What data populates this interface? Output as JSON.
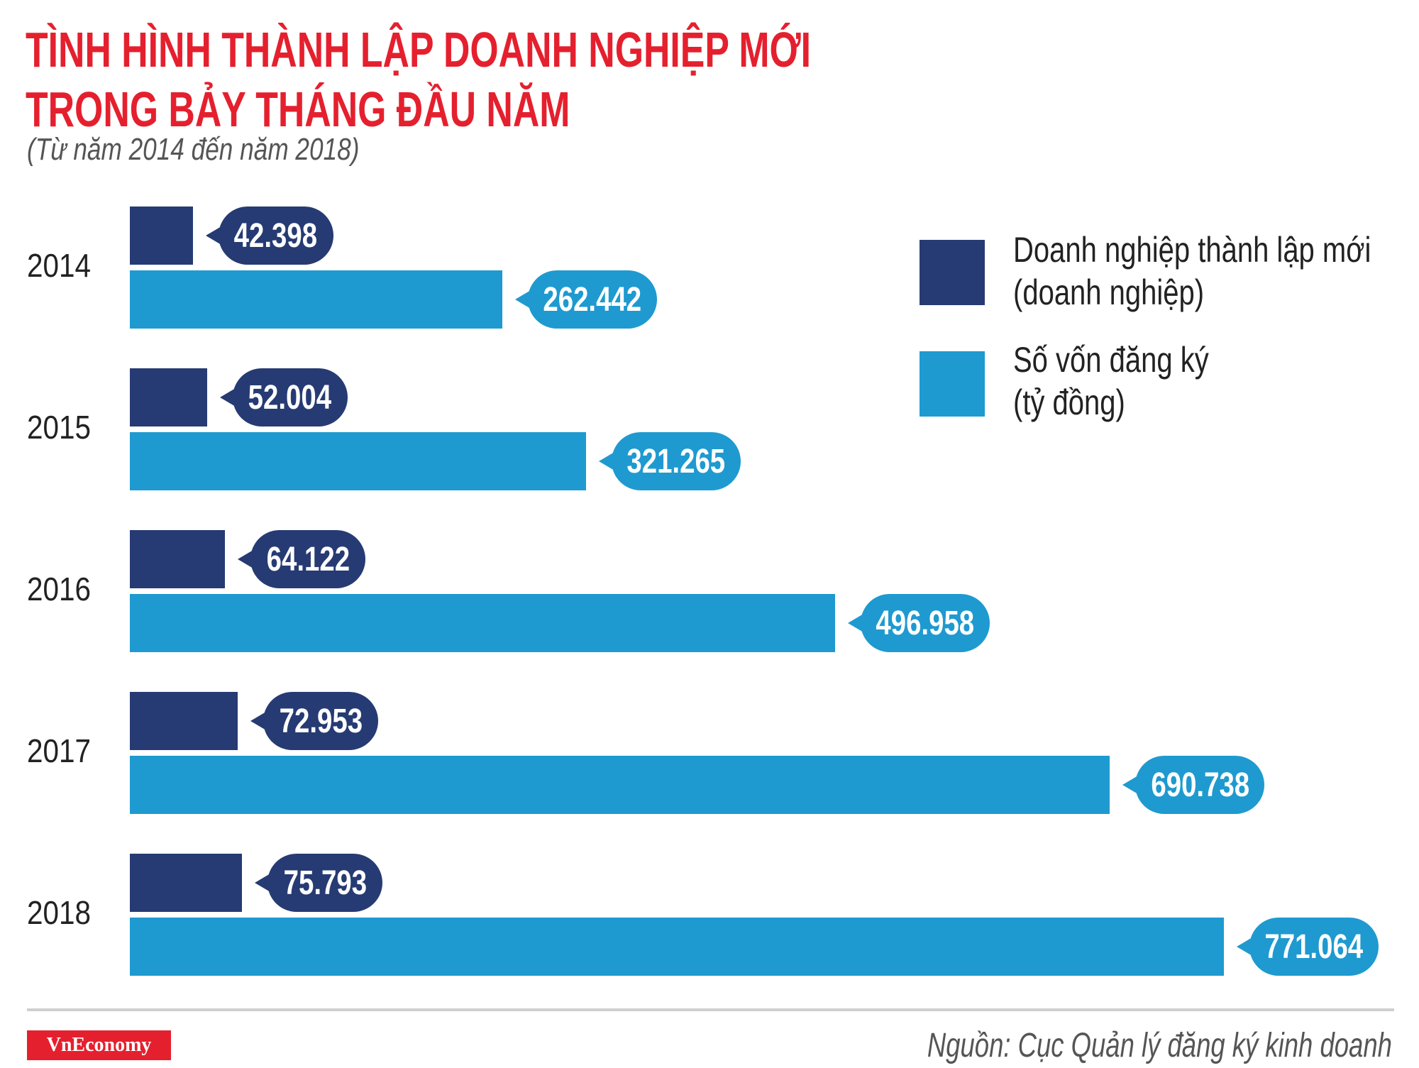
{
  "title_lines": [
    "TÌNH HÌNH THÀNH LẬP DOANH NGHIỆP MỚI",
    "TRONG BẢY THÁNG ĐẦU NĂM"
  ],
  "subtitle": "(Từ năm 2014 đến năm 2018)",
  "colors": {
    "title": "#e5202e",
    "enterprises": "#263b73",
    "capital": "#1e9ad0"
  },
  "chart_data": {
    "type": "bar",
    "orientation": "horizontal",
    "title": "TÌNH HÌNH THÀNH LẬP DOANH NGHIỆP MỚI TRONG BẢY THÁNG ĐẦU NĂM",
    "subtitle": "(Từ năm 2014 đến năm 2018)",
    "categories": [
      "2014",
      "2015",
      "2016",
      "2017",
      "2018"
    ],
    "series": [
      {
        "name": "Doanh nghiệp thành lập mới (doanh nghiệp)",
        "values": [
          42398,
          52004,
          64122,
          72953,
          75793
        ],
        "labels": [
          "42.398",
          "52.004",
          "64.122",
          "72.953",
          "75.793"
        ],
        "color": "#263b73"
      },
      {
        "name": "Số vốn đăng ký (tỷ đồng)",
        "values": [
          262442,
          321265,
          496958,
          690738,
          771064
        ],
        "labels": [
          "262.442",
          "321.265",
          "496.958",
          "690.738",
          "771.064"
        ],
        "color": "#1e9ad0"
      }
    ],
    "legend_position": "top-right",
    "grid": false
  },
  "legend": [
    {
      "line1": "Doanh nghiệp thành lập mới",
      "line2": "(doanh nghiệp)"
    },
    {
      "line1": "Số vốn đăng ký",
      "line2": "(tỷ đồng)"
    }
  ],
  "footer": {
    "logo": "VnEconomy",
    "source": "Nguồn: Cục Quản lý đăng ký kinh doanh"
  }
}
